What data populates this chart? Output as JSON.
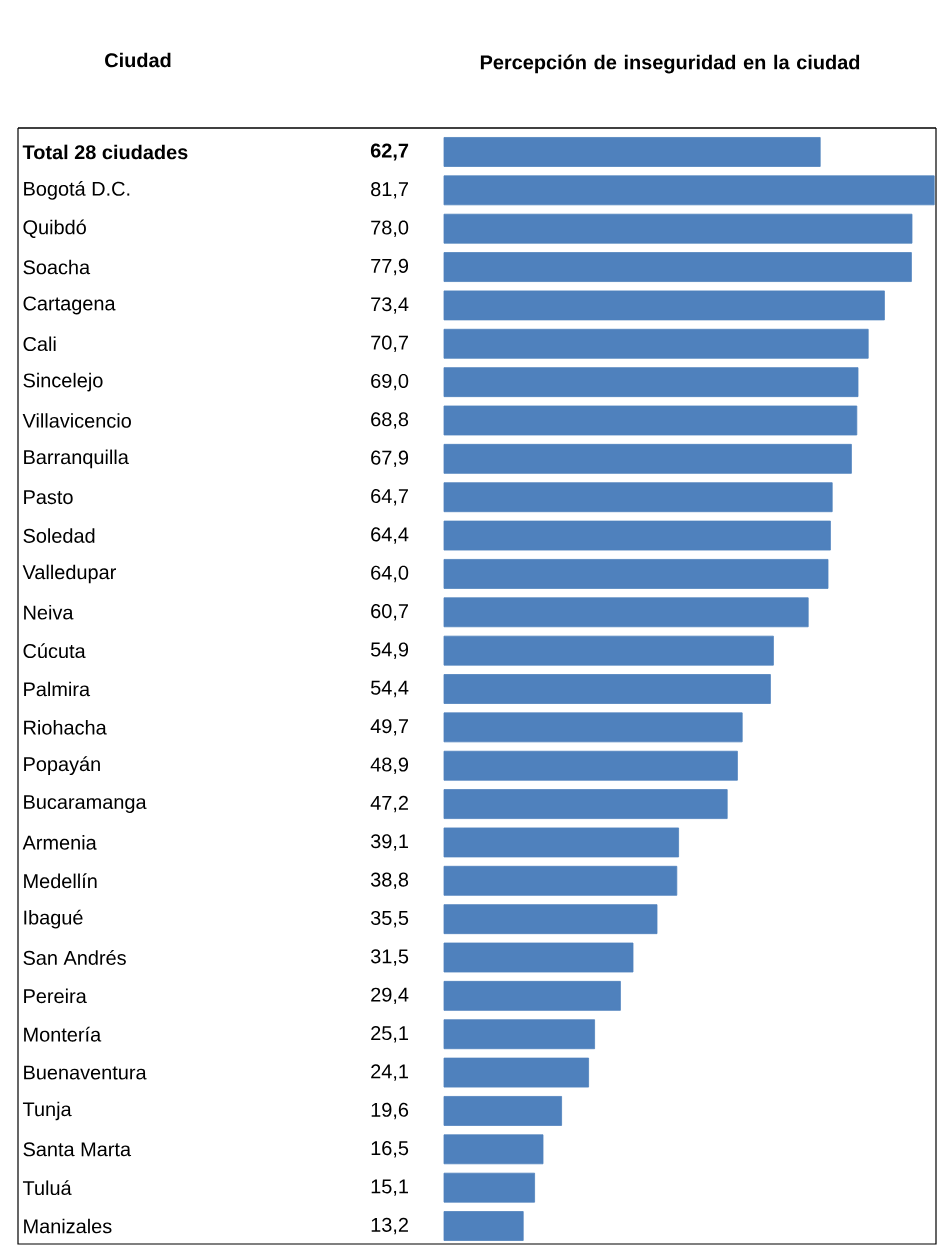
{
  "chart_data": {
    "type": "bar",
    "orientation": "horizontal",
    "title": "Percepción de inseguridad en la ciudad",
    "ylabel": "Ciudad",
    "categories": [
      "**Total 28 ciudades**",
      "Bogotá D.C.",
      "Quibdó",
      "Soacha",
      "Cartagena",
      "Cali",
      "Sincelejo",
      "Villavicencio",
      "Barranquilla",
      "Pasto",
      "Soledad",
      "Valledupar",
      "Neiva",
      "Cúcuta",
      "Palmira",
      "Riohacha",
      "Popayán",
      "Bucaramanga",
      "Armenia",
      "Medellín",
      "Ibagué",
      "San Andrés",
      "Pereira",
      "Montería",
      "Buenaventura",
      "Tunja",
      "Santa Marta",
      "Tuluá",
      "Manizales"
    ],
    "values": [
      62.7,
      81.7,
      78.0,
      77.9,
      73.4,
      70.7,
      69.0,
      68.8,
      67.9,
      64.7,
      64.4,
      64.0,
      60.7,
      54.9,
      54.4,
      49.7,
      48.9,
      47.2,
      39.1,
      38.8,
      35.5,
      31.5,
      29.4,
      25.1,
      24.1,
      19.6,
      16.5,
      15.1,
      13.2
    ],
    "value_labels": [
      "**62,7**",
      "81,7",
      "78,0",
      "77,9",
      "73,4",
      "70,7",
      "69,0",
      "68,8",
      "67,9",
      "64,7",
      "64,4",
      "64,0",
      "60,7",
      "54,9",
      "54,4",
      "49,7",
      "48,9",
      "47,2",
      "39,1",
      "38,8",
      "35,5",
      "31,5",
      "29,4",
      "25,1",
      "24,1",
      "19,6",
      "16,5",
      "15,1",
      "13,2"
    ],
    "color": "#4f81bd",
    "xlim": [
      0,
      82
    ],
    "tick_labels": "y"
  }
}
